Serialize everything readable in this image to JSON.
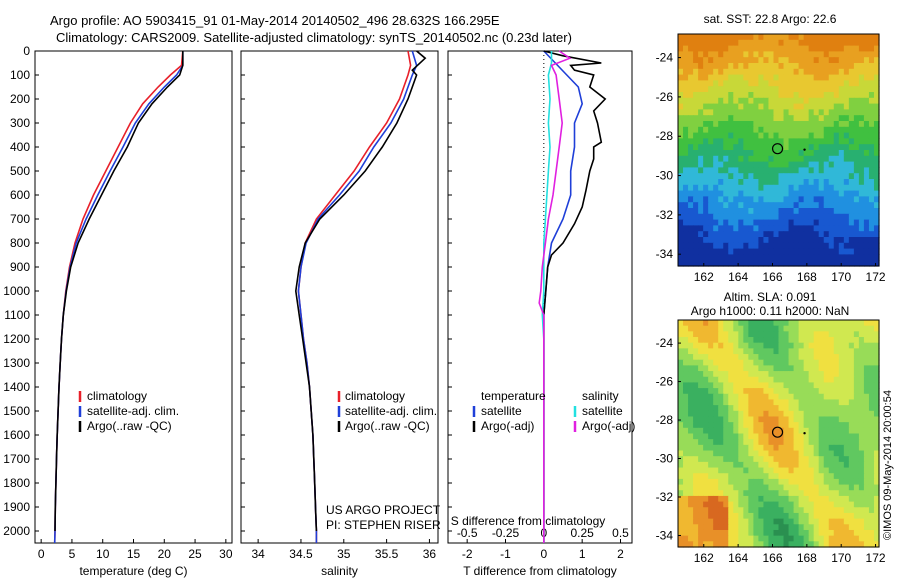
{
  "header": {
    "line1": "Argo profile: AO 5903415_91 01-May-2014 20140502_496 28.632S 166.295E",
    "line2": "Climatology: CARS2009. Satellite-adjusted climatology: synTS_20140502.nc (0.23d later)"
  },
  "colors": {
    "climatology": "#e8202a",
    "satellite": "#1f3fd8",
    "argo": "#000000",
    "sal_sat": "#22e0e0",
    "sal_argo": "#e020e0"
  },
  "chart_data": [
    {
      "type": "line",
      "id": "temperature",
      "xlabel": "temperature (deg C)",
      "ylabel": "",
      "xlim": [
        -1,
        31
      ],
      "ylim": [
        2050,
        0
      ],
      "xticks": [
        "0",
        "5",
        "10",
        "15",
        "20",
        "25",
        "30"
      ],
      "yticks": [
        "0",
        "100",
        "200",
        "300",
        "400",
        "500",
        "600",
        "700",
        "800",
        "900",
        "1000",
        "1100",
        "1200",
        "1300",
        "1400",
        "1500",
        "1600",
        "1700",
        "1800",
        "1900",
        "2000"
      ],
      "legend": [
        "climatology",
        "satellite-adj. clim.",
        "Argo(..raw -QC)"
      ],
      "series": [
        {
          "name": "climatology",
          "points": [
            [
              23,
              0
            ],
            [
              22.8,
              60
            ],
            [
              21,
              100
            ],
            [
              19,
              150
            ],
            [
              16.5,
              220
            ],
            [
              14.5,
              300
            ],
            [
              12.5,
              400
            ],
            [
              10.5,
              500
            ],
            [
              8.5,
              600
            ],
            [
              6.8,
              700
            ],
            [
              5.5,
              800
            ],
            [
              4.6,
              900
            ],
            [
              4,
              1000
            ],
            [
              3.6,
              1100
            ],
            [
              3.3,
              1200
            ],
            [
              3.1,
              1300
            ],
            [
              2.9,
              1400
            ],
            [
              2.75,
              1500
            ],
            [
              2.6,
              1600
            ],
            [
              2.5,
              1700
            ],
            [
              2.4,
              1800
            ],
            [
              2.3,
              1900
            ],
            [
              2.25,
              2000
            ],
            [
              2.2,
              2050
            ]
          ]
        },
        {
          "name": "satellite-adj. clim.",
          "points": [
            [
              23,
              0
            ],
            [
              23,
              60
            ],
            [
              22,
              100
            ],
            [
              20,
              150
            ],
            [
              17.5,
              220
            ],
            [
              15.3,
              300
            ],
            [
              13.3,
              400
            ],
            [
              11.2,
              500
            ],
            [
              9.2,
              600
            ],
            [
              7.3,
              700
            ],
            [
              5.7,
              800
            ],
            [
              4.7,
              900
            ],
            [
              4.05,
              1000
            ],
            [
              3.6,
              1100
            ],
            [
              3.3,
              1200
            ],
            [
              3.1,
              1300
            ],
            [
              2.9,
              1400
            ],
            [
              2.75,
              1500
            ],
            [
              2.6,
              1600
            ],
            [
              2.5,
              1700
            ],
            [
              2.4,
              1800
            ],
            [
              2.3,
              1900
            ],
            [
              2.25,
              2000
            ],
            [
              2.2,
              2050
            ]
          ]
        },
        {
          "name": "Argo(..raw -QC)",
          "points": [
            [
              23,
              0
            ],
            [
              23,
              60
            ],
            [
              22.5,
              100
            ],
            [
              20.5,
              150
            ],
            [
              18,
              220
            ],
            [
              15.8,
              300
            ],
            [
              14,
              400
            ],
            [
              11.8,
              500
            ],
            [
              9.8,
              600
            ],
            [
              7.8,
              700
            ],
            [
              6,
              800
            ],
            [
              4.8,
              900
            ],
            [
              4.1,
              1000
            ],
            [
              3.6,
              1100
            ],
            [
              3.3,
              1200
            ],
            [
              3.1,
              1300
            ],
            [
              2.9,
              1400
            ],
            [
              2.75,
              1500
            ],
            [
              2.6,
              1600
            ],
            [
              2.5,
              1700
            ],
            [
              2.4,
              1800
            ],
            [
              2.3,
              1900
            ],
            [
              2.25,
              2000
            ]
          ]
        }
      ]
    },
    {
      "type": "line",
      "id": "salinity",
      "xlabel": "salinity",
      "xlim": [
        33.8,
        36.1
      ],
      "ylim": [
        2050,
        0
      ],
      "xticks": [
        "34",
        "34.5",
        "35",
        "35.5",
        "36"
      ],
      "legend": [
        "climatology",
        "satellite-adj. clim.",
        "Argo(..raw -QC)"
      ],
      "note": [
        "US ARGO PROJECT",
        "PI: STEPHEN RISER"
      ],
      "series": [
        {
          "name": "climatology",
          "points": [
            [
              35.75,
              0
            ],
            [
              35.78,
              60
            ],
            [
              35.75,
              100
            ],
            [
              35.65,
              200
            ],
            [
              35.5,
              300
            ],
            [
              35.3,
              400
            ],
            [
              35.12,
              500
            ],
            [
              34.9,
              600
            ],
            [
              34.68,
              700
            ],
            [
              34.55,
              800
            ],
            [
              34.5,
              900
            ],
            [
              34.47,
              1000
            ],
            [
              34.5,
              1100
            ],
            [
              34.53,
              1200
            ],
            [
              34.57,
              1300
            ],
            [
              34.6,
              1400
            ],
            [
              34.62,
              1500
            ],
            [
              34.64,
              1600
            ],
            [
              34.65,
              1700
            ],
            [
              34.66,
              1800
            ],
            [
              34.67,
              1900
            ],
            [
              34.68,
              2000
            ],
            [
              34.68,
              2050
            ]
          ]
        },
        {
          "name": "satellite-adj. clim.",
          "points": [
            [
              35.8,
              0
            ],
            [
              35.85,
              60
            ],
            [
              35.8,
              100
            ],
            [
              35.7,
              200
            ],
            [
              35.55,
              300
            ],
            [
              35.35,
              400
            ],
            [
              35.18,
              500
            ],
            [
              34.95,
              600
            ],
            [
              34.7,
              700
            ],
            [
              34.56,
              800
            ],
            [
              34.5,
              900
            ],
            [
              34.47,
              1000
            ],
            [
              34.5,
              1100
            ],
            [
              34.53,
              1200
            ],
            [
              34.57,
              1300
            ],
            [
              34.6,
              1400
            ],
            [
              34.62,
              1500
            ],
            [
              34.64,
              1600
            ],
            [
              34.65,
              1700
            ],
            [
              34.66,
              1800
            ],
            [
              34.67,
              1900
            ],
            [
              34.68,
              2000
            ],
            [
              34.68,
              2050
            ]
          ]
        },
        {
          "name": "Argo(..raw -QC)",
          "points": [
            [
              35.85,
              0
            ],
            [
              35.95,
              30
            ],
            [
              35.8,
              80
            ],
            [
              35.85,
              100
            ],
            [
              35.75,
              200
            ],
            [
              35.62,
              300
            ],
            [
              35.45,
              400
            ],
            [
              35.25,
              500
            ],
            [
              35.0,
              600
            ],
            [
              34.72,
              700
            ],
            [
              34.55,
              800
            ],
            [
              34.48,
              900
            ],
            [
              34.44,
              1000
            ],
            [
              34.48,
              1100
            ],
            [
              34.52,
              1200
            ],
            [
              34.56,
              1300
            ],
            [
              34.6,
              1400
            ],
            [
              34.62,
              1500
            ],
            [
              34.64,
              1600
            ],
            [
              34.65,
              1700
            ],
            [
              34.66,
              1800
            ],
            [
              34.67,
              1900
            ],
            [
              34.68,
              2000
            ]
          ]
        }
      ]
    },
    {
      "type": "line",
      "id": "difference",
      "xlabel": "T difference from climatology",
      "xlabel2": "S difference from climatology",
      "xlim": [
        -2.5,
        2.3
      ],
      "ylim": [
        2050,
        0
      ],
      "xticks": [
        "-2",
        "-1",
        "0",
        "1",
        "2"
      ],
      "xticks2": [
        "-0.5",
        "-0.25",
        "0",
        "0.25",
        "0.5"
      ],
      "legend_t": {
        "title": "temperature",
        "items": [
          "satellite",
          "Argo(-adj)"
        ]
      },
      "legend_s": {
        "title": "salinity",
        "items": [
          "satellite",
          "Argo(-adj)"
        ]
      },
      "series": [
        {
          "name": "temperature satellite",
          "points": [
            [
              0,
              0
            ],
            [
              0.3,
              50
            ],
            [
              0.6,
              100
            ],
            [
              0.9,
              150
            ],
            [
              1,
              220
            ],
            [
              0.8,
              300
            ],
            [
              0.8,
              400
            ],
            [
              0.7,
              500
            ],
            [
              0.7,
              600
            ],
            [
              0.5,
              700
            ],
            [
              0.2,
              800
            ],
            [
              0.1,
              900
            ],
            [
              0.05,
              1000
            ],
            [
              0,
              1100
            ],
            [
              0,
              1300
            ],
            [
              0,
              2050
            ]
          ]
        },
        {
          "name": "temperature Argo(-adj)",
          "points": [
            [
              0,
              0
            ],
            [
              0.5,
              20
            ],
            [
              1.5,
              50
            ],
            [
              0.7,
              60
            ],
            [
              0.8,
              80
            ],
            [
              1.3,
              100
            ],
            [
              1.2,
              150
            ],
            [
              1.6,
              200
            ],
            [
              1.3,
              250
            ],
            [
              1.4,
              300
            ],
            [
              1.5,
              380
            ],
            [
              1.3,
              400
            ],
            [
              1.3,
              450
            ],
            [
              1.2,
              500
            ],
            [
              1.1,
              580
            ],
            [
              1.0,
              650
            ],
            [
              0.8,
              720
            ],
            [
              0.5,
              800
            ],
            [
              0.2,
              850
            ],
            [
              0.1,
              900
            ],
            [
              0.05,
              1000
            ],
            [
              0,
              1100
            ],
            [
              0,
              1300
            ],
            [
              0,
              2050
            ]
          ]
        },
        {
          "name": "salinity satellite",
          "points": [
            [
              0.05,
              0
            ],
            [
              0.05,
              50
            ],
            [
              0.03,
              100
            ],
            [
              0.04,
              200
            ],
            [
              0.03,
              300
            ],
            [
              0.04,
              400
            ],
            [
              0.03,
              500
            ],
            [
              0.02,
              600
            ],
            [
              0.01,
              700
            ],
            [
              0,
              800
            ],
            [
              0,
              1000
            ],
            [
              -0.01,
              1100
            ],
            [
              0,
              1200
            ],
            [
              0,
              2050
            ]
          ]
        },
        {
          "name": "salinity Argo(-adj)",
          "points": [
            [
              0.1,
              0
            ],
            [
              0.17,
              30
            ],
            [
              0.05,
              60
            ],
            [
              0.08,
              100
            ],
            [
              0.1,
              200
            ],
            [
              0.12,
              300
            ],
            [
              0.1,
              400
            ],
            [
              0.08,
              500
            ],
            [
              0.06,
              600
            ],
            [
              0.03,
              700
            ],
            [
              0.01,
              800
            ],
            [
              -0.01,
              900
            ],
            [
              -0.02,
              1000
            ],
            [
              -0.03,
              1050
            ],
            [
              0,
              1100
            ],
            [
              0,
              2050
            ]
          ]
        }
      ]
    },
    {
      "type": "heatmap",
      "id": "sst_map",
      "title": "sat. SST: 22.8 Argo: 22.6",
      "xlim": [
        160.5,
        172.2
      ],
      "ylim": [
        -34.6,
        -22.8
      ],
      "xticks": [
        "162",
        "164",
        "166",
        "168",
        "170",
        "172"
      ],
      "yticks": [
        "-24",
        "-26",
        "-28",
        "-30",
        "-32",
        "-34"
      ],
      "marker": {
        "lon": 166.295,
        "lat": -28.632
      }
    },
    {
      "type": "heatmap",
      "id": "sla_map",
      "title": "Altim. SLA: 0.091",
      "subtitle": "Argo h1000: 0.11 h2000: NaN",
      "xlim": [
        160.5,
        172.2
      ],
      "ylim": [
        -34.6,
        -22.8
      ],
      "xticks": [
        "162",
        "164",
        "166",
        "168",
        "170",
        "172"
      ],
      "yticks": [
        "-24",
        "-26",
        "-28",
        "-30",
        "-32",
        "-34"
      ],
      "marker": {
        "lon": 166.295,
        "lat": -28.632
      }
    }
  ],
  "footer": {
    "stamp": "©IMOS 09-May-2014 20:00:54"
  }
}
